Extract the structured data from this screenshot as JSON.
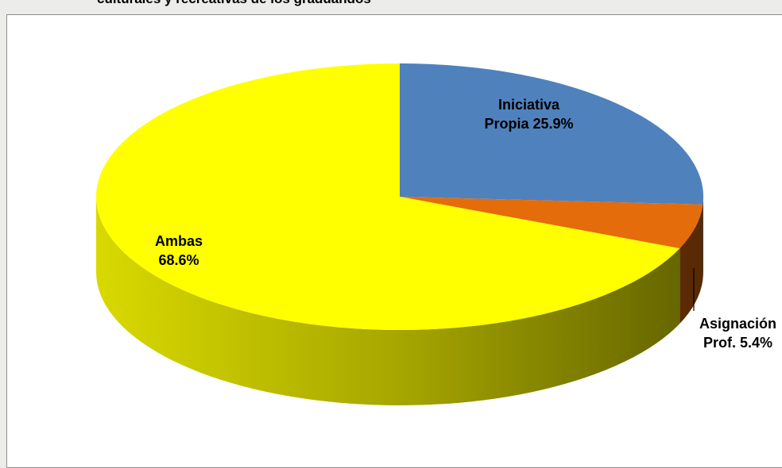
{
  "chart_data": {
    "type": "pie3d",
    "title": "culturales y recreativas de los graduandos",
    "categories": [
      "Iniciativa Propia",
      "Asignación Prof.",
      "Ambas"
    ],
    "values": [
      25.9,
      5.4,
      68.6
    ],
    "value_labels": [
      "25.9%",
      "5.4%",
      "68.6%"
    ],
    "colors": [
      "#4f81bd",
      "#e46c0a",
      "#ffff00"
    ]
  }
}
